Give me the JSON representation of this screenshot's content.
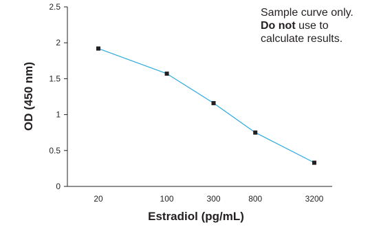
{
  "chart_data": {
    "type": "line",
    "xlabel": "Estradiol (pg/mL)",
    "ylabel": "OD (450 nm)",
    "x_scale": "log",
    "x_ticks": [
      20,
      100,
      300,
      800,
      3200
    ],
    "y_ticks": [
      0,
      0.5,
      1,
      1.5,
      2,
      2.5
    ],
    "ylim": [
      0,
      2.5
    ],
    "grid": false,
    "series": [
      {
        "x": [
          20,
          100,
          300,
          800,
          3200
        ],
        "y": [
          1.92,
          1.57,
          1.16,
          0.75,
          0.33
        ],
        "line_color": "#29a9e0",
        "marker_color": "#231f20"
      }
    ],
    "annotation": {
      "line1": "Sample curve only.",
      "bold": "Do not",
      "line2_rest": " use to",
      "line3": "calculate results."
    }
  }
}
